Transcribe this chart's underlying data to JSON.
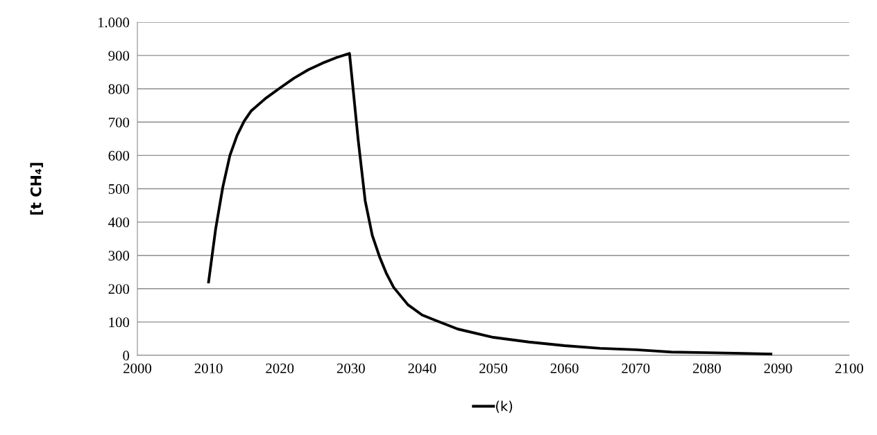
{
  "chart_data": {
    "type": "line",
    "ylabel": "[t CH₄]",
    "x": [
      2010,
      2011,
      2012,
      2013,
      2014,
      2015,
      2016,
      2018,
      2020,
      2022,
      2024,
      2026,
      2028,
      2029.8,
      2030.3,
      2031,
      2032,
      2033,
      2034,
      2035,
      2036,
      2038,
      2040,
      2042,
      2045,
      2050,
      2055,
      2060,
      2065,
      2070,
      2075,
      2080,
      2085,
      2089
    ],
    "series": [
      {
        "name": "(k)",
        "color": "#000000",
        "values": [
          220,
          380,
          505,
          600,
          660,
          703,
          734,
          771,
          802,
          832,
          857,
          877,
          894,
          906,
          800,
          650,
          464,
          360,
          297,
          245,
          204,
          152,
          121,
          104,
          79,
          54,
          40,
          29,
          21,
          17,
          10,
          8,
          6,
          4
        ]
      }
    ],
    "xlim": [
      2000,
      2100
    ],
    "xticks": [
      2000,
      2010,
      2020,
      2030,
      2040,
      2050,
      2060,
      2070,
      2080,
      2090,
      2100
    ],
    "ylim": [
      0,
      1000
    ],
    "yticks": [
      0,
      100,
      200,
      300,
      400,
      500,
      600,
      700,
      800,
      900,
      {
        "value": 1000,
        "label": "1.000"
      }
    ],
    "grid": "y",
    "legend": "bottom",
    "marker": "none",
    "line_style": "solid"
  }
}
